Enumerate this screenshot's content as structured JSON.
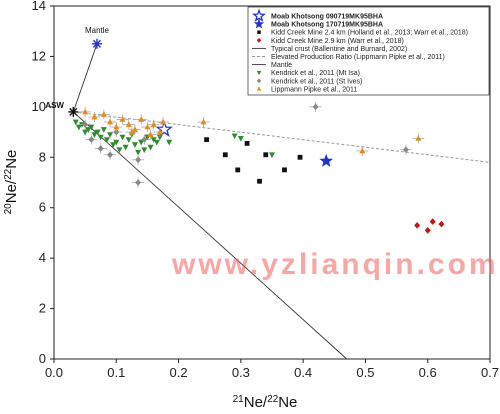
{
  "chart_data": {
    "type": "scatter",
    "xlabel": "21Ne/22Ne",
    "ylabel": "20Ne/22Ne",
    "xlim": [
      0,
      0.7
    ],
    "ylim": [
      0,
      14
    ],
    "x_ticks": [
      "0.0",
      "0.1",
      "0.2",
      "0.3",
      "0.4",
      "0.5",
      "0.6",
      "0.7"
    ],
    "y_ticks": [
      "0",
      "2",
      "4",
      "6",
      "8",
      "10",
      "12",
      "14"
    ],
    "legend_position": "top-right",
    "annotations": [
      {
        "text": "ASW",
        "x": 0.031,
        "y": 9.8
      },
      {
        "text": "Mantle",
        "x": 0.069,
        "y": 12.5
      }
    ],
    "series": [
      {
        "name": "Moab Khotsong 090719MK95BHA",
        "marker": "star-open",
        "color": "#2233cc",
        "points": [
          [
            0.177,
            9.1
          ]
        ]
      },
      {
        "name": "Moab Khotsong 170719MK95BHA",
        "marker": "star",
        "color": "#2233cc",
        "points": [
          [
            0.437,
            7.85
          ]
        ]
      },
      {
        "name": "Kidd Creek Mine 2.4 km (Holland et al., 2013; Warr et al., 2018)",
        "marker": "square",
        "color": "#111111",
        "points": [
          [
            0.245,
            8.7
          ],
          [
            0.275,
            8.1
          ],
          [
            0.295,
            7.5
          ],
          [
            0.31,
            8.55
          ],
          [
            0.33,
            7.05
          ],
          [
            0.34,
            8.1
          ],
          [
            0.37,
            7.5
          ],
          [
            0.395,
            8.0
          ]
        ]
      },
      {
        "name": "Kidd Creek Mine 2.9 km (Warr et al., 2018)",
        "marker": "diamond",
        "color": "#cc1111",
        "points": [
          [
            0.583,
            5.3
          ],
          [
            0.6,
            5.1
          ],
          [
            0.608,
            5.45
          ],
          [
            0.622,
            5.35
          ]
        ]
      },
      {
        "name": "Typical crust (Ballentine and Burnard, 2002)",
        "marker": "line",
        "color": "#333333",
        "points": [
          [
            0.031,
            9.8
          ],
          [
            0.47,
            0
          ]
        ]
      },
      {
        "name": "Elevated Production Ratio (Lippmann Pipke et al., 2011)",
        "marker": "dashed-line",
        "color": "#999999",
        "points": [
          [
            0.031,
            9.8
          ],
          [
            0.7,
            7.8
          ]
        ]
      },
      {
        "name": "Mantle",
        "marker": "line",
        "color": "#333333",
        "points": [
          [
            0.031,
            9.8
          ],
          [
            0.069,
            12.5
          ]
        ]
      },
      {
        "name": "Kendrick et al., 2011 (Mt Isa)",
        "marker": "triangle-down",
        "color": "#2e8b2e",
        "points": [
          [
            0.035,
            9.4
          ],
          [
            0.04,
            9.2
          ],
          [
            0.045,
            9.3
          ],
          [
            0.05,
            9.0
          ],
          [
            0.055,
            9.1
          ],
          [
            0.06,
            9.2
          ],
          [
            0.065,
            8.9
          ],
          [
            0.07,
            9.0
          ],
          [
            0.075,
            8.8
          ],
          [
            0.08,
            9.1
          ],
          [
            0.085,
            8.7
          ],
          [
            0.09,
            8.9
          ],
          [
            0.095,
            8.5
          ],
          [
            0.1,
            8.6
          ],
          [
            0.105,
            8.3
          ],
          [
            0.11,
            8.8
          ],
          [
            0.115,
            8.4
          ],
          [
            0.12,
            8.7
          ],
          [
            0.125,
            8.9
          ],
          [
            0.13,
            8.5
          ],
          [
            0.135,
            8.2
          ],
          [
            0.14,
            8.6
          ],
          [
            0.145,
            8.3
          ],
          [
            0.15,
            8.8
          ],
          [
            0.155,
            8.4
          ],
          [
            0.16,
            8.7
          ],
          [
            0.165,
            8.6
          ],
          [
            0.17,
            8.8
          ],
          [
            0.185,
            8.6
          ],
          [
            0.29,
            8.85
          ],
          [
            0.3,
            8.75
          ],
          [
            0.35,
            8.1
          ]
        ]
      },
      {
        "name": "Kendrick et al., 2011 (St Ives)",
        "marker": "diamond",
        "color": "#888888",
        "points": [
          [
            0.05,
            9.3
          ],
          [
            0.06,
            8.7
          ],
          [
            0.075,
            8.35
          ],
          [
            0.09,
            8.1
          ],
          [
            0.1,
            9.0
          ],
          [
            0.135,
            7.9
          ],
          [
            0.145,
            8.7
          ],
          [
            0.135,
            7.0
          ],
          [
            0.42,
            10.0
          ],
          [
            0.565,
            8.3
          ]
        ]
      },
      {
        "name": "Lippmann Pipke et al., 2011",
        "marker": "triangle",
        "color": "#e68a1a",
        "points": [
          [
            0.05,
            9.8
          ],
          [
            0.065,
            9.6
          ],
          [
            0.08,
            9.7
          ],
          [
            0.09,
            9.4
          ],
          [
            0.1,
            9.2
          ],
          [
            0.11,
            9.5
          ],
          [
            0.12,
            9.3
          ],
          [
            0.125,
            9.0
          ],
          [
            0.13,
            9.1
          ],
          [
            0.14,
            9.5
          ],
          [
            0.15,
            9.2
          ],
          [
            0.155,
            8.9
          ],
          [
            0.16,
            9.3
          ],
          [
            0.17,
            9.0
          ],
          [
            0.175,
            9.4
          ],
          [
            0.24,
            9.4
          ],
          [
            0.495,
            8.25
          ],
          [
            0.585,
            8.75
          ]
        ]
      }
    ]
  }
}
